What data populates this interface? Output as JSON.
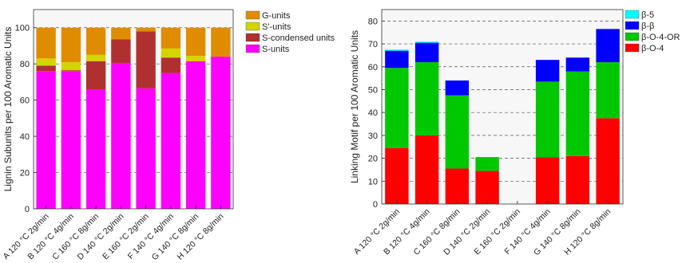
{
  "chart_data": [
    {
      "type": "bar",
      "stacked": true,
      "ylabel": "Lignin Subunits per 100 Aromatic Units",
      "ylim": [
        0,
        110
      ],
      "yticks": [
        0,
        20,
        40,
        60,
        80,
        100
      ],
      "grid": "horizontal dashed",
      "legend_position": "outside-right",
      "categories": [
        "A 120 °C 2g/min",
        "B 120 °C 4g/min",
        "C 160 °C 8g/min",
        "D 140 °C 2g/min",
        "E 160 °C 2g/min",
        "F 140 °C 4g/min",
        "G 140 °C 8g/min",
        "H 120 °C 8g/min"
      ],
      "series": [
        {
          "name": "S-units",
          "color": "#ff00ff",
          "values": [
            76,
            76,
            66,
            80.5,
            66.5,
            75,
            81.5,
            84
          ]
        },
        {
          "name": "S-condensed units",
          "color": "#b03030",
          "values": [
            3,
            0.5,
            15.5,
            13,
            31.5,
            8.5,
            0,
            0
          ]
        },
        {
          "name": "S'-units",
          "color": "#d4d400",
          "values": [
            4,
            4.5,
            3.5,
            0,
            0,
            5,
            3,
            0
          ]
        },
        {
          "name": "G-units",
          "color": "#e08c00",
          "values": [
            17,
            19,
            15,
            6.5,
            2,
            11.5,
            15.5,
            16
          ]
        }
      ],
      "legend_order": [
        "G-units",
        "S'-units",
        "S-condensed units",
        "S-units"
      ]
    },
    {
      "type": "bar",
      "stacked": true,
      "ylabel": "Linking Motif per 100 Aromatic Units",
      "ylim": [
        0,
        85
      ],
      "yticks": [
        0,
        10,
        20,
        30,
        40,
        50,
        60,
        70,
        80
      ],
      "grid": "horizontal dashed",
      "legend_position": "outside-right",
      "categories": [
        "A 120 °C 2g/min",
        "B 120 °C 4g/min",
        "C 160 °C 8g/min",
        "D 140 °C 2g/min",
        "E 160 °C 2g/min",
        "F 140 °C 4g/min",
        "G 140 °C 8g/min",
        "H 120 °C 8g/min"
      ],
      "series": [
        {
          "name": "β-O-4",
          "color": "#ff0000",
          "values": [
            24.5,
            30,
            15.5,
            14.5,
            0,
            20.5,
            21,
            37.5
          ]
        },
        {
          "name": "β-O-4-OR",
          "color": "#00c800",
          "values": [
            35,
            32,
            32,
            6,
            0,
            33,
            37,
            24.5
          ]
        },
        {
          "name": "β-β",
          "color": "#0000ff",
          "values": [
            7.5,
            8.5,
            6.5,
            0,
            0,
            9.5,
            6,
            14.5
          ]
        },
        {
          "name": "β-5",
          "color": "#00ffff",
          "values": [
            0.5,
            0.5,
            0,
            0,
            0,
            0,
            0,
            0
          ]
        }
      ],
      "legend_order": [
        "β-5",
        "β-β",
        "β-O-4-OR",
        "β-O-4"
      ]
    }
  ]
}
